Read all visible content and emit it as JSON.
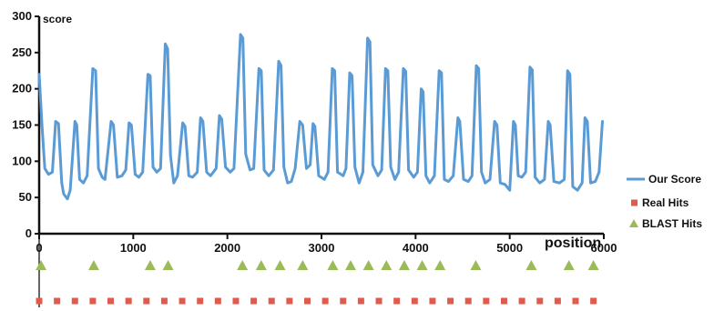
{
  "chart_data": {
    "type": "line",
    "ylabel": "score",
    "xlabel": "position",
    "xlim": [
      0,
      6000
    ],
    "ylim": [
      0,
      300
    ],
    "x_ticks": [
      0,
      1000,
      2000,
      3000,
      4000,
      5000,
      6000
    ],
    "y_ticks": [
      0,
      50,
      100,
      150,
      200,
      250,
      300
    ],
    "grid": false,
    "legend_position": "right",
    "series": [
      {
        "name": "Our Score",
        "color": "#5b9bd5",
        "points": [
          [
            0,
            220
          ],
          [
            30,
            150
          ],
          [
            60,
            90
          ],
          [
            100,
            82
          ],
          [
            140,
            85
          ],
          [
            175,
            155
          ],
          [
            205,
            152
          ],
          [
            240,
            70
          ],
          [
            260,
            55
          ],
          [
            300,
            48
          ],
          [
            330,
            60
          ],
          [
            380,
            155
          ],
          [
            400,
            150
          ],
          [
            430,
            75
          ],
          [
            470,
            70
          ],
          [
            510,
            80
          ],
          [
            570,
            228
          ],
          [
            600,
            225
          ],
          [
            630,
            90
          ],
          [
            670,
            78
          ],
          [
            700,
            75
          ],
          [
            765,
            155
          ],
          [
            790,
            150
          ],
          [
            830,
            78
          ],
          [
            880,
            80
          ],
          [
            920,
            88
          ],
          [
            955,
            153
          ],
          [
            980,
            150
          ],
          [
            1020,
            82
          ],
          [
            1060,
            78
          ],
          [
            1100,
            85
          ],
          [
            1155,
            220
          ],
          [
            1180,
            218
          ],
          [
            1210,
            92
          ],
          [
            1250,
            85
          ],
          [
            1290,
            90
          ],
          [
            1340,
            262
          ],
          [
            1365,
            255
          ],
          [
            1395,
            108
          ],
          [
            1430,
            70
          ],
          [
            1470,
            80
          ],
          [
            1525,
            153
          ],
          [
            1550,
            148
          ],
          [
            1590,
            80
          ],
          [
            1630,
            78
          ],
          [
            1680,
            85
          ],
          [
            1715,
            160
          ],
          [
            1740,
            155
          ],
          [
            1780,
            85
          ],
          [
            1820,
            80
          ],
          [
            1880,
            90
          ],
          [
            1915,
            163
          ],
          [
            1940,
            158
          ],
          [
            1980,
            92
          ],
          [
            2030,
            85
          ],
          [
            2070,
            90
          ],
          [
            2140,
            275
          ],
          [
            2165,
            270
          ],
          [
            2195,
            110
          ],
          [
            2240,
            88
          ],
          [
            2280,
            90
          ],
          [
            2335,
            228
          ],
          [
            2360,
            225
          ],
          [
            2390,
            88
          ],
          [
            2440,
            80
          ],
          [
            2490,
            88
          ],
          [
            2545,
            238
          ],
          [
            2570,
            232
          ],
          [
            2600,
            92
          ],
          [
            2640,
            70
          ],
          [
            2680,
            72
          ],
          [
            2720,
            90
          ],
          [
            2770,
            155
          ],
          [
            2800,
            150
          ],
          [
            2840,
            90
          ],
          [
            2880,
            95
          ],
          [
            2910,
            152
          ],
          [
            2930,
            148
          ],
          [
            2970,
            80
          ],
          [
            3030,
            75
          ],
          [
            3070,
            85
          ],
          [
            3115,
            228
          ],
          [
            3140,
            225
          ],
          [
            3170,
            85
          ],
          [
            3230,
            80
          ],
          [
            3260,
            90
          ],
          [
            3300,
            222
          ],
          [
            3325,
            218
          ],
          [
            3355,
            92
          ],
          [
            3400,
            70
          ],
          [
            3440,
            85
          ],
          [
            3490,
            270
          ],
          [
            3515,
            265
          ],
          [
            3545,
            95
          ],
          [
            3600,
            80
          ],
          [
            3640,
            88
          ],
          [
            3680,
            228
          ],
          [
            3705,
            225
          ],
          [
            3735,
            92
          ],
          [
            3780,
            75
          ],
          [
            3820,
            85
          ],
          [
            3870,
            228
          ],
          [
            3895,
            224
          ],
          [
            3925,
            88
          ],
          [
            3980,
            78
          ],
          [
            4020,
            85
          ],
          [
            4060,
            200
          ],
          [
            4080,
            196
          ],
          [
            4110,
            80
          ],
          [
            4150,
            70
          ],
          [
            4200,
            80
          ],
          [
            4250,
            225
          ],
          [
            4275,
            222
          ],
          [
            4305,
            75
          ],
          [
            4350,
            72
          ],
          [
            4400,
            80
          ],
          [
            4450,
            160
          ],
          [
            4470,
            155
          ],
          [
            4510,
            75
          ],
          [
            4560,
            72
          ],
          [
            4600,
            80
          ],
          [
            4645,
            232
          ],
          [
            4670,
            228
          ],
          [
            4700,
            85
          ],
          [
            4740,
            70
          ],
          [
            4790,
            75
          ],
          [
            4840,
            155
          ],
          [
            4865,
            150
          ],
          [
            4900,
            70
          ],
          [
            4950,
            68
          ],
          [
            5000,
            60
          ],
          [
            5040,
            155
          ],
          [
            5060,
            150
          ],
          [
            5090,
            80
          ],
          [
            5130,
            78
          ],
          [
            5170,
            85
          ],
          [
            5215,
            230
          ],
          [
            5240,
            226
          ],
          [
            5270,
            78
          ],
          [
            5320,
            70
          ],
          [
            5370,
            75
          ],
          [
            5410,
            155
          ],
          [
            5430,
            150
          ],
          [
            5470,
            72
          ],
          [
            5530,
            70
          ],
          [
            5580,
            75
          ],
          [
            5615,
            225
          ],
          [
            5640,
            220
          ],
          [
            5670,
            65
          ],
          [
            5720,
            60
          ],
          [
            5770,
            70
          ],
          [
            5800,
            160
          ],
          [
            5825,
            155
          ],
          [
            5860,
            70
          ],
          [
            5910,
            72
          ],
          [
            5950,
            85
          ],
          [
            5985,
            155
          ]
        ]
      },
      {
        "name": "Real Hits",
        "color": "#e05a4d",
        "marker": "square",
        "x": [
          0,
          190,
          380,
          570,
          760,
          950,
          1140,
          1330,
          1520,
          1710,
          1900,
          2090,
          2280,
          2470,
          2660,
          2850,
          3040,
          3230,
          3420,
          3610,
          3800,
          3990,
          4180,
          4370,
          4560,
          4750,
          4940,
          5130,
          5320,
          5510,
          5700,
          5890
        ]
      },
      {
        "name": "BLAST Hits",
        "color": "#9bbb59",
        "marker": "triangle",
        "x": [
          20,
          580,
          1180,
          1370,
          2160,
          2360,
          2560,
          2800,
          3120,
          3310,
          3500,
          3690,
          3880,
          4070,
          4260,
          4640,
          5230,
          5630,
          5890
        ]
      }
    ]
  }
}
